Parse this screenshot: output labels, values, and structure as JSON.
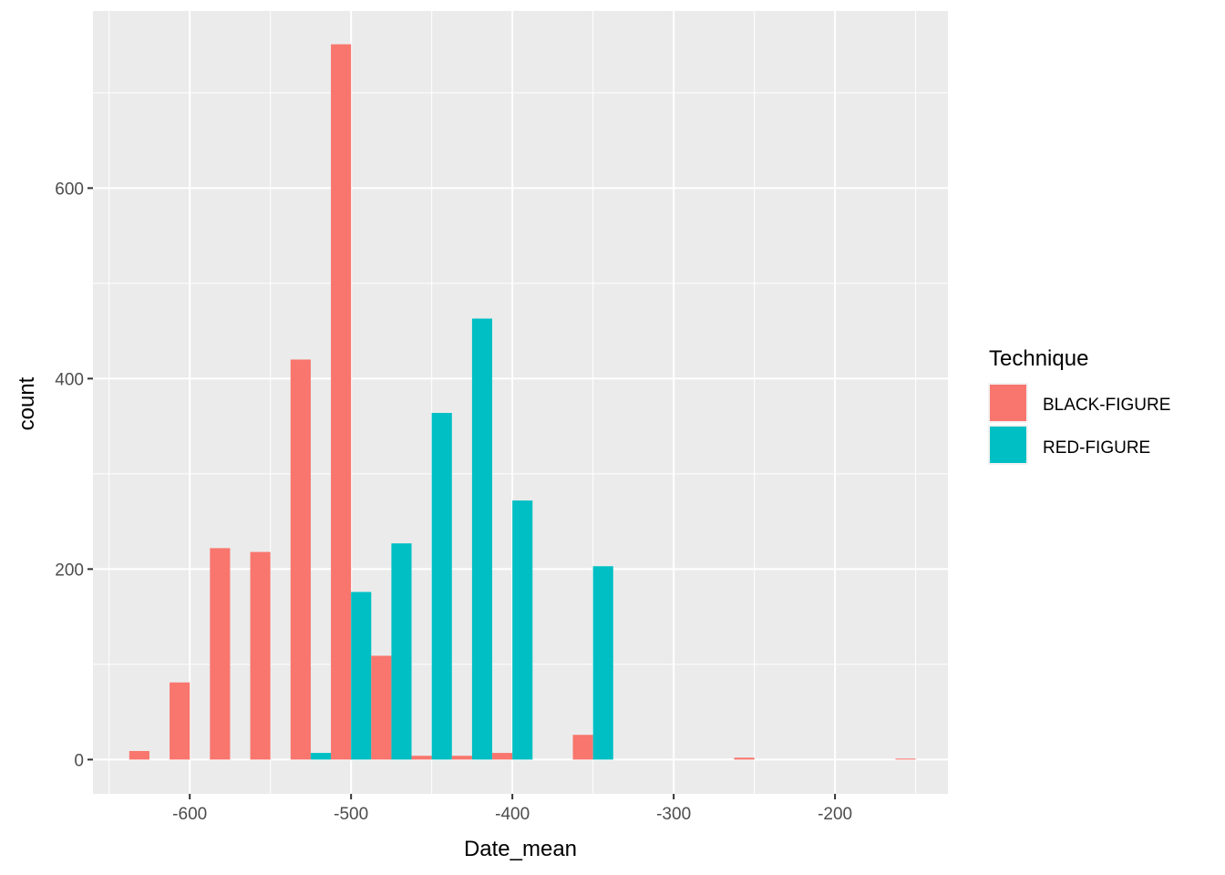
{
  "chart_data": {
    "type": "bar",
    "xlabel": "Date_mean",
    "ylabel": "count",
    "xlim": [
      -660,
      -130
    ],
    "ylim": [
      -36,
      786
    ],
    "x_ticks": [
      -600,
      -500,
      -400,
      -300,
      -200
    ],
    "x_tick_labels": [
      "-600",
      "-500",
      "-400",
      "-300",
      "-200"
    ],
    "y_ticks": [
      0,
      200,
      400,
      600
    ],
    "y_tick_labels": [
      "0",
      "200",
      "400",
      "600"
    ],
    "bin_width": 25,
    "grid": true,
    "legend": {
      "title": "Technique",
      "position": "right",
      "entries": [
        "BLACK-FIGURE",
        "RED-FIGURE"
      ]
    },
    "x": [
      -625,
      -600,
      -575,
      -550,
      -525,
      -500,
      -475,
      -450,
      -425,
      -400,
      -375,
      -350,
      -325,
      -300,
      -275,
      -250,
      -225,
      -200,
      -175,
      -150
    ],
    "series": [
      {
        "name": "BLACK-FIGURE",
        "color": "#F8766D",
        "values": [
          9,
          81,
          222,
          218,
          420,
          751,
          109,
          4,
          4,
          7,
          0,
          26,
          0,
          0,
          0,
          2,
          0,
          0,
          0,
          1
        ]
      },
      {
        "name": "RED-FIGURE",
        "color": "#00BFC4",
        "values": [
          0,
          0,
          0,
          0,
          7,
          176,
          227,
          364,
          463,
          272,
          0,
          203,
          0,
          0,
          0,
          0,
          0,
          0,
          0,
          0
        ]
      }
    ]
  },
  "colors": {
    "panel_background": "#EBEBEB",
    "grid_line": "#FFFFFF"
  }
}
